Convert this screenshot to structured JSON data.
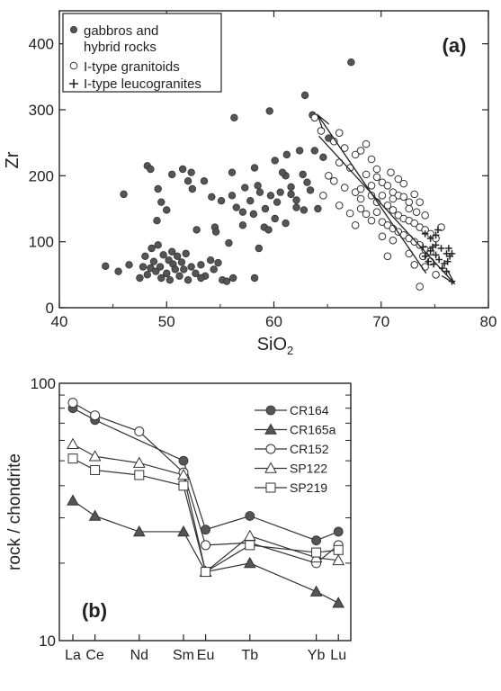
{
  "chart_data": [
    {
      "type": "scatter",
      "panel_label": "(a)",
      "xlabel": "SiO",
      "xlabel_sub": "2",
      "ylabel": "Zr",
      "xlim": [
        40,
        80
      ],
      "ylim": [
        0,
        450
      ],
      "xticks": [
        "40",
        "50",
        "60",
        "70",
        "80"
      ],
      "yticks": [
        "0",
        "100",
        "200",
        "300",
        "400"
      ],
      "legend": {
        "placement": "top-left",
        "entries": [
          {
            "symbol": "filled-circle",
            "label_line1": "gabbros and",
            "label_line2": "hybrid rocks"
          },
          {
            "symbol": "open-circle",
            "label_line1": "I-type granitoids",
            "label_line2": ""
          },
          {
            "symbol": "plus",
            "label_line1": "I-type leucogranites",
            "label_line2": ""
          }
        ]
      },
      "series": [
        {
          "name": "gabbros and hybrid rocks",
          "marker": "filled-circle",
          "color": "#555555",
          "points": [
            [
              44.3,
              63
            ],
            [
              45.5,
              55
            ],
            [
              46.5,
              65
            ],
            [
              47.5,
              45
            ],
            [
              47.8,
              62
            ],
            [
              48,
              78
            ],
            [
              48.2,
              50
            ],
            [
              48.5,
              60
            ],
            [
              48.6,
              90
            ],
            [
              48.8,
              70
            ],
            [
              49,
              55
            ],
            [
              49.2,
              95
            ],
            [
              49.4,
              62
            ],
            [
              49.5,
              45
            ],
            [
              49.7,
              80
            ],
            [
              50,
              52
            ],
            [
              50.2,
              72
            ],
            [
              50.3,
              42
            ],
            [
              50.5,
              85
            ],
            [
              50.6,
              66
            ],
            [
              50.8,
              58
            ],
            [
              51,
              78
            ],
            [
              51.2,
              48
            ],
            [
              51.4,
              69
            ],
            [
              51.6,
              58
            ],
            [
              51.8,
              82
            ],
            [
              52,
              42
            ],
            [
              52.3,
              62
            ],
            [
              52.7,
              52
            ],
            [
              53.2,
              65
            ],
            [
              53.6,
              48
            ],
            [
              54.1,
              72
            ],
            [
              54.4,
              58
            ],
            [
              54.8,
              68
            ],
            [
              55.2,
              42
            ],
            [
              55.6,
              40
            ],
            [
              56.2,
              45
            ],
            [
              48.2,
              215
            ],
            [
              48.5,
              210
            ],
            [
              49.2,
              180
            ],
            [
              49.5,
              160
            ],
            [
              46,
              172
            ],
            [
              50.5,
              202
            ],
            [
              51.5,
              210
            ],
            [
              52,
              192
            ],
            [
              52.4,
              180
            ],
            [
              52.3,
              205
            ],
            [
              53.5,
              192
            ],
            [
              54.2,
              168
            ],
            [
              55.1,
              162
            ],
            [
              56.1,
              205
            ],
            [
              57.3,
              182
            ],
            [
              57.8,
              162
            ],
            [
              58.2,
              212
            ],
            [
              58.5,
              185
            ],
            [
              58.7,
              175
            ],
            [
              59.2,
              150
            ],
            [
              59.7,
              170
            ],
            [
              60.3,
              160
            ],
            [
              60.6,
              175
            ],
            [
              61.1,
              200
            ],
            [
              61.6,
              183
            ],
            [
              62.1,
              163
            ],
            [
              62.7,
              202
            ],
            [
              63.1,
              190
            ],
            [
              63.4,
              178
            ],
            [
              62.8,
              148
            ],
            [
              61.6,
              172
            ],
            [
              60.1,
              223
            ],
            [
              61.2,
              232
            ],
            [
              62.4,
              238
            ],
            [
              63.8,
              238
            ],
            [
              56.3,
              288
            ],
            [
              59.6,
              298
            ],
            [
              64.6,
              228
            ],
            [
              65.1,
              257
            ],
            [
              63.6,
              292
            ],
            [
              62.9,
              322
            ],
            [
              67.2,
              372
            ],
            [
              57.1,
              125
            ],
            [
              58.1,
              142
            ],
            [
              59.1,
              122
            ],
            [
              60.1,
              135
            ],
            [
              61.1,
              128
            ],
            [
              62.1,
              152
            ],
            [
              58.6,
              90
            ],
            [
              59.5,
              118
            ],
            [
              50,
              148
            ],
            [
              52.8,
              118
            ],
            [
              55.8,
              98
            ],
            [
              54.5,
              122
            ],
            [
              57.1,
              145
            ],
            [
              49.1,
              132
            ],
            [
              58.2,
              45
            ],
            [
              53.2,
              45
            ],
            [
              56.5,
              152
            ],
            [
              60.8,
              205
            ],
            [
              54.6,
              115
            ],
            [
              56.1,
              170
            ],
            [
              64.1,
              150
            ]
          ]
        },
        {
          "name": "I-type granitoids",
          "marker": "open-circle",
          "color": "#333333",
          "points": [
            [
              63.8,
              288
            ],
            [
              64.4,
              268
            ],
            [
              65.6,
              252
            ],
            [
              66.6,
              242
            ],
            [
              67.6,
              232
            ],
            [
              68.1,
              238
            ],
            [
              68.6,
              248
            ],
            [
              66.1,
              220
            ],
            [
              67.1,
              212
            ],
            [
              68.6,
              202
            ],
            [
              69.6,
              198
            ],
            [
              70.1,
              190
            ],
            [
              70.6,
              185
            ],
            [
              71.1,
              175
            ],
            [
              71.6,
              170
            ],
            [
              72.1,
              168
            ],
            [
              72.6,
              160
            ],
            [
              66.6,
              182
            ],
            [
              67.6,
              175
            ],
            [
              68.1,
              165
            ],
            [
              69.1,
              170
            ],
            [
              69.6,
              160
            ],
            [
              70.6,
              155
            ],
            [
              71.1,
              148
            ],
            [
              71.6,
              140
            ],
            [
              72.1,
              135
            ],
            [
              72.6,
              132
            ],
            [
              73.1,
              128
            ],
            [
              73.6,
              122
            ],
            [
              74.1,
              118
            ],
            [
              74.6,
              112
            ],
            [
              68.1,
              150
            ],
            [
              69.6,
              145
            ],
            [
              70.1,
              130
            ],
            [
              70.6,
              125
            ],
            [
              71.1,
              120
            ],
            [
              71.6,
              115
            ],
            [
              72.1,
              110
            ],
            [
              72.6,
              105
            ],
            [
              73.1,
              100
            ],
            [
              73.6,
              95
            ],
            [
              74.1,
              88
            ],
            [
              74.6,
              85
            ],
            [
              65.1,
              200
            ],
            [
              64.6,
              170
            ],
            [
              67.1,
              143
            ],
            [
              68.6,
              142
            ],
            [
              69.1,
              132
            ],
            [
              70.1,
              108
            ],
            [
              73.6,
              160
            ],
            [
              72.6,
              82
            ],
            [
              73.1,
              65
            ],
            [
              73.9,
              78
            ],
            [
              74.6,
              70
            ],
            [
              75.1,
              50
            ],
            [
              73.6,
              32
            ],
            [
              71.1,
              102
            ],
            [
              70.6,
              78
            ],
            [
              74.1,
              62
            ],
            [
              66.1,
              265
            ],
            [
              69.1,
              225
            ],
            [
              65.6,
              192
            ],
            [
              71.6,
              195
            ],
            [
              72.1,
              188
            ],
            [
              73.1,
              172
            ],
            [
              70.1,
              170
            ],
            [
              69.1,
              185
            ],
            [
              72.6,
              150
            ],
            [
              71.1,
              165
            ],
            [
              69.6,
              210
            ],
            [
              68.1,
              180
            ],
            [
              66.1,
              155
            ],
            [
              67.6,
              125
            ],
            [
              75.6,
              122
            ],
            [
              75.1,
              105
            ],
            [
              74.1,
              140
            ],
            [
              70.9,
              205
            ],
            [
              73.3,
              145
            ]
          ]
        },
        {
          "name": "I-type leucogranites",
          "marker": "plus",
          "color": "#222222",
          "points": [
            [
              74.1,
              78
            ],
            [
              74.6,
              86
            ],
            [
              75.1,
              80
            ],
            [
              75.6,
              90
            ],
            [
              76.1,
              82
            ],
            [
              74.4,
              70
            ],
            [
              74.9,
              66
            ],
            [
              75.4,
              73
            ],
            [
              75.9,
              67
            ],
            [
              76.4,
              78
            ],
            [
              75.1,
              95
            ],
            [
              74.6,
              105
            ],
            [
              75.1,
              110
            ],
            [
              76.3,
              90
            ],
            [
              76.6,
              82
            ],
            [
              76.2,
              70
            ],
            [
              75.7,
              60
            ],
            [
              76.1,
              55
            ],
            [
              76.6,
              40
            ],
            [
              74.1,
              112
            ],
            [
              75.3,
              118
            ],
            [
              73.9,
              92
            ],
            [
              74.8,
              92
            ]
          ]
        }
      ],
      "trend_arrows": [
        {
          "tail": [
            64.2,
            260
          ],
          "head": [
            76.8,
            37
          ],
          "head_at": "end"
        },
        {
          "tail": [
            74.2,
            52
          ],
          "head": [
            64.1,
            292
          ],
          "head_at": "end"
        }
      ]
    },
    {
      "type": "line",
      "panel_label": "(b)",
      "ylabel": "rock / chondrite",
      "y_scale": "log",
      "ylim": [
        10,
        100
      ],
      "yticks": [
        "10",
        "100"
      ],
      "x_positions": {
        "La": 1,
        "Ce": 2,
        "Nd": 4,
        "Sm": 6,
        "Eu": 7,
        "Tb": 9,
        "Yb": 12,
        "Lu": 13
      },
      "xticks": [
        "La",
        "Ce",
        "Nd",
        "Sm",
        "Eu",
        "Tb",
        "Yb",
        "Lu"
      ],
      "legend": {
        "placement": "top-right"
      },
      "series": [
        {
          "name": "CR164",
          "marker": "filled-circle",
          "points": [
            [
              "La",
              80
            ],
            [
              "Ce",
              72
            ],
            [
              "Sm",
              50
            ],
            [
              "Eu",
              27
            ],
            [
              "Tb",
              30.5
            ],
            [
              "Yb",
              24.5
            ],
            [
              "Lu",
              26.5
            ]
          ]
        },
        {
          "name": "CR165a",
          "marker": "filled-triangle",
          "points": [
            [
              "La",
              35
            ],
            [
              "Ce",
              30.5
            ],
            [
              "Nd",
              26.5
            ],
            [
              "Sm",
              26.5
            ],
            [
              "Eu",
              18.5
            ],
            [
              "Tb",
              20
            ],
            [
              "Yb",
              15.5
            ],
            [
              "Lu",
              14
            ]
          ]
        },
        {
          "name": "CR152",
          "marker": "open-circle",
          "points": [
            [
              "La",
              84
            ],
            [
              "Ce",
              75
            ],
            [
              "Nd",
              65
            ],
            [
              "Sm",
              45
            ],
            [
              "Eu",
              23.5
            ],
            [
              "Tb",
              24
            ],
            [
              "Yb",
              20
            ],
            [
              "Lu",
              23.5
            ]
          ]
        },
        {
          "name": "SP122",
          "marker": "open-triangle",
          "points": [
            [
              "La",
              58
            ],
            [
              "Ce",
              52
            ],
            [
              "Nd",
              49
            ],
            [
              "Sm",
              44
            ],
            [
              "Eu",
              18.5
            ],
            [
              "Tb",
              25.5
            ],
            [
              "Yb",
              21
            ],
            [
              "Lu",
              20.5
            ]
          ]
        },
        {
          "name": "SP219",
          "marker": "open-square",
          "points": [
            [
              "La",
              51
            ],
            [
              "Ce",
              46
            ],
            [
              "Nd",
              44
            ],
            [
              "Sm",
              40
            ],
            [
              "Eu",
              18.5
            ],
            [
              "Tb",
              23.5
            ],
            [
              "Yb",
              22
            ],
            [
              "Lu",
              22.5
            ]
          ]
        }
      ]
    }
  ]
}
